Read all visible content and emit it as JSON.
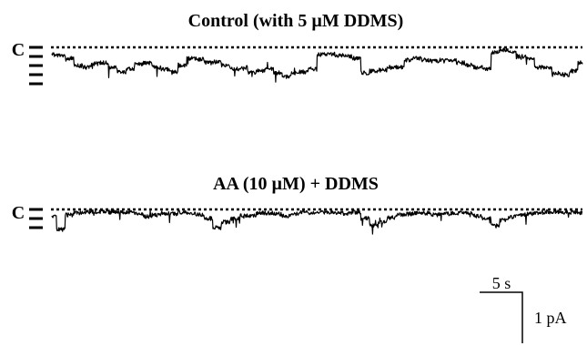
{
  "chart_data": {
    "type": "line",
    "colors": {
      "trace": "#000000",
      "background": "#ffffff"
    },
    "scale_bar": {
      "time_label": "5 s",
      "current_label": "1 pA"
    },
    "closed_label": "C",
    "panels": [
      {
        "title": "Control (with 5 µM DDMS)",
        "levels": 5,
        "seed": 7,
        "trace_y": [
          0.6,
          0.7,
          1.0,
          1.8,
          2.0,
          1.6,
          1.5,
          2.0,
          2.5,
          2.2,
          1.6,
          1.5,
          2.0,
          2.2,
          2.5,
          1.8,
          1.0,
          1.1,
          1.5,
          1.4,
          1.8,
          2.2,
          2.0,
          2.6,
          2.4,
          2.2,
          2.6,
          3.0,
          2.6,
          2.5,
          2.2,
          0.6,
          0.5,
          0.7,
          0.8,
          1.0,
          2.6,
          2.4,
          2.3,
          2.0,
          2.0,
          1.2,
          1.0,
          1.2,
          1.3,
          1.2,
          1.2,
          1.5,
          1.8,
          2.0,
          2.2,
          0.3,
          0.1,
          0.4,
          0.8,
          1.0,
          2.0,
          2.0,
          2.6,
          2.8,
          2.4,
          1.5
        ]
      },
      {
        "title": "AA (10 µM) + DDMS",
        "levels": 3,
        "seed": 23,
        "trace_y": [
          0.6,
          2.0,
          0.4,
          0.2,
          0.1,
          0.05,
          0.1,
          0.1,
          0.15,
          0.1,
          0.3,
          0.6,
          0.4,
          0.2,
          0.3,
          0.1,
          0.2,
          0.4,
          0.8,
          1.8,
          1.2,
          0.8,
          0.5,
          0.5,
          0.2,
          0.2,
          0.3,
          0.5,
          0.3,
          0.1,
          0.2,
          0.1,
          0.15,
          0.2,
          0.25,
          0.1,
          0.8,
          1.6,
          1.2,
          0.7,
          0.4,
          0.3,
          0.2,
          0.2,
          0.4,
          0.3,
          0.2,
          0.2,
          0.2,
          0.5,
          0.8,
          1.6,
          1.0,
          0.6,
          0.4,
          0.3,
          0.2,
          0.1,
          0.1,
          0.1,
          0.1,
          0.15
        ]
      }
    ]
  }
}
